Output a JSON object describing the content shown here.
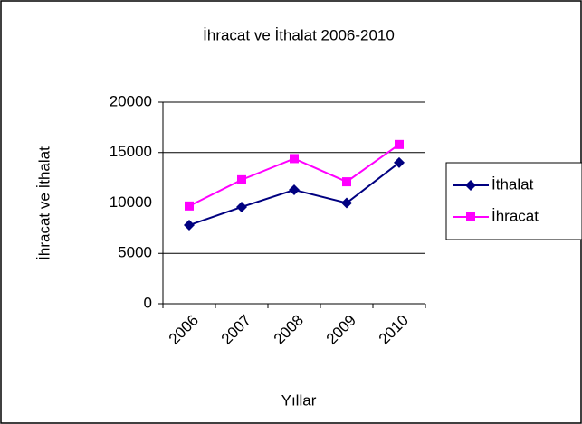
{
  "chart_data": {
    "type": "line",
    "title": "İhracat ve İthalat 2006-2010",
    "x_label": "Yıllar",
    "y_label": "İhracat ve İthalat",
    "categories": [
      "2006",
      "2007",
      "2008",
      "2009",
      "2010"
    ],
    "series": [
      {
        "name": "İthalat",
        "color": "#000080",
        "marker": "diamond",
        "values": [
          7800,
          9600,
          11300,
          10000,
          14000
        ]
      },
      {
        "name": "İhracat",
        "color": "#ff00ff",
        "marker": "square",
        "values": [
          9700,
          12300,
          14400,
          12100,
          15800
        ]
      }
    ],
    "ylim": [
      0,
      20000
    ],
    "yticks": [
      0,
      5000,
      10000,
      15000,
      20000
    ],
    "grid": true,
    "legend": "right"
  }
}
